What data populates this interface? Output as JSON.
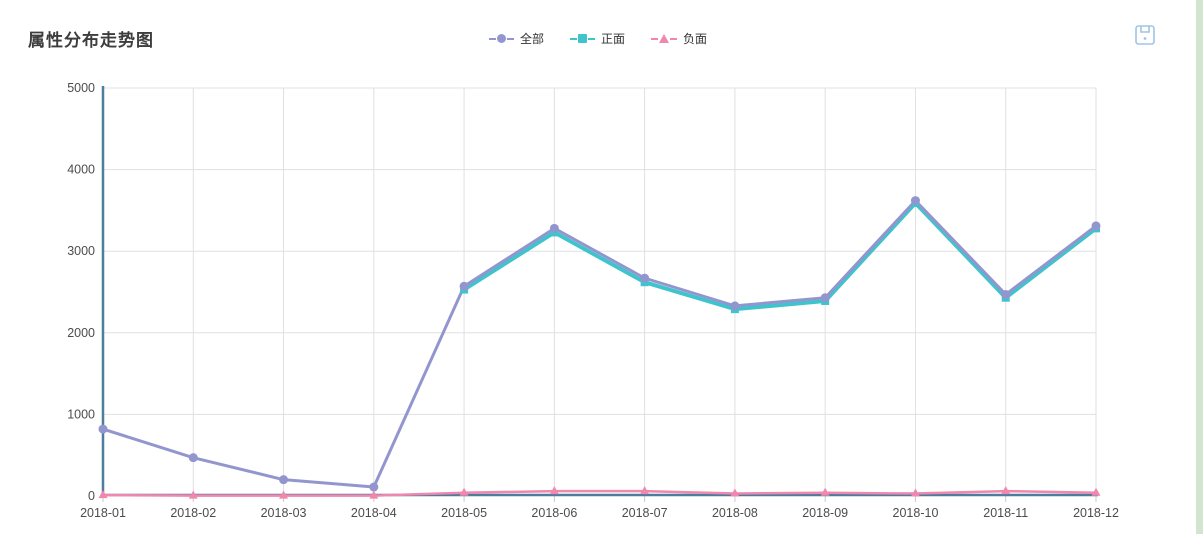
{
  "page": {
    "title": "属性分布走势图"
  },
  "toolbar": {
    "save_tooltip": "保存为图片"
  },
  "legend": [
    {
      "label": "全部",
      "color": "#9396ce",
      "marker": "circle"
    },
    {
      "label": "正面",
      "color": "#3fc3cc",
      "marker": "square"
    },
    {
      "label": "负面",
      "color": "#ef87ae",
      "marker": "triangle"
    }
  ],
  "chart_data": {
    "type": "line",
    "title": "属性分布走势图",
    "xlabel": "",
    "ylabel": "",
    "categories": [
      "2018-01",
      "2018-02",
      "2018-03",
      "2018-04",
      "2018-05",
      "2018-06",
      "2018-07",
      "2018-08",
      "2018-09",
      "2018-10",
      "2018-11",
      "2018-12"
    ],
    "series": [
      {
        "name": "全部",
        "color": "#9396ce",
        "marker": "circle",
        "values": [
          820,
          470,
          200,
          110,
          2570,
          3280,
          2670,
          2330,
          2430,
          3620,
          2470,
          3310
        ]
      },
      {
        "name": "正面",
        "color": "#3fc3cc",
        "marker": "square",
        "values": [
          null,
          null,
          null,
          null,
          2530,
          3230,
          2620,
          2290,
          2390,
          3590,
          2430,
          3280
        ]
      },
      {
        "name": "负面",
        "color": "#ef87ae",
        "marker": "triangle",
        "values": [
          10,
          5,
          5,
          5,
          40,
          60,
          60,
          30,
          40,
          30,
          60,
          40
        ]
      }
    ],
    "ylim": [
      0,
      5000
    ],
    "yticks": [
      0,
      1000,
      2000,
      3000,
      4000,
      5000
    ],
    "grid": true,
    "legend_position": "top-center",
    "colors": {
      "axis_line": "#4d7c9d",
      "grid_line": "#e0e0e0",
      "tick_label": "#4c4c4c",
      "save_icon": "#9ec5e5"
    }
  }
}
